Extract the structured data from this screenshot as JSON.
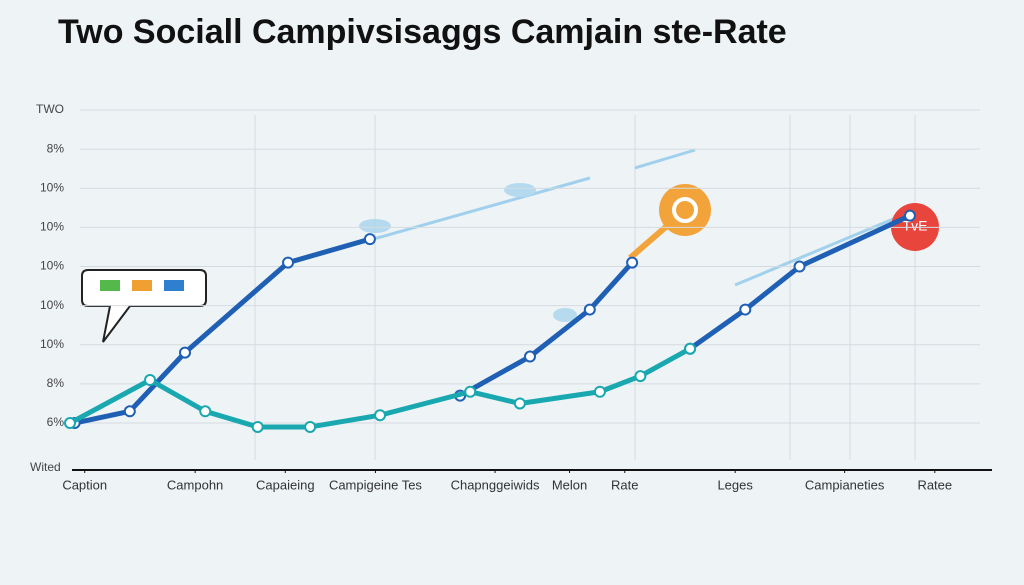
{
  "chart_data": {
    "type": "line",
    "title": "Two Sociall Campivsisaggs Camjain ste-Rate",
    "x_label": "Wited",
    "annotation": "TvE",
    "xlim": [
      0,
      100
    ],
    "xticks": [
      {
        "value": 1.6,
        "label": "Caption"
      },
      {
        "value": 13.6,
        "label": "Campohn"
      },
      {
        "value": 23.4,
        "label": "Capaieing"
      },
      {
        "value": 33.2,
        "label": "Campigeine Tes"
      },
      {
        "value": 46.2,
        "label": "Chapnggeiwids"
      },
      {
        "value": 54.3,
        "label": "Melon"
      },
      {
        "value": 60.3,
        "label": "Rate"
      },
      {
        "value": 72.3,
        "label": "Leges"
      },
      {
        "value": 84.2,
        "label": "Campianeties"
      },
      {
        "value": 94,
        "label": "Ratee"
      }
    ],
    "ylim": [
      -1.2,
      8
    ],
    "yticks": [
      {
        "value": 0,
        "label": "6%"
      },
      {
        "value": 1,
        "label": "8%"
      },
      {
        "value": 2,
        "label": "10%"
      },
      {
        "value": 3,
        "label": "10%"
      },
      {
        "value": 4,
        "label": "10%"
      },
      {
        "value": 5,
        "label": "10%"
      },
      {
        "value": 6,
        "label": "10%"
      },
      {
        "value": 7,
        "label": "8%"
      },
      {
        "value": 8,
        "label": "TWO"
      }
    ],
    "grid": true,
    "series": [
      {
        "color": "#1f5fb4",
        "x": [
          0.5,
          6.5,
          12.5,
          23.7,
          32.6,
          null,
          42.4,
          50.0,
          56.5,
          61.1,
          null,
          67.4,
          73.4,
          79.3,
          91.3
        ],
        "values": [
          0.0,
          0.3,
          1.8,
          4.1,
          4.7,
          null,
          0.7,
          1.7,
          2.9,
          4.1,
          null,
          1.9,
          2.9,
          4.0,
          5.3
        ]
      },
      {
        "color": "#1aa8b0",
        "x": [
          0,
          8.7,
          14.7,
          20.4,
          26.1,
          33.7,
          43.5,
          48.9,
          57.6,
          62.0,
          67.4
        ],
        "values": [
          0.0,
          1.1,
          0.3,
          -0.1,
          -0.1,
          0.2,
          0.8,
          0.5,
          0.8,
          1.2,
          1.9
        ]
      }
    ]
  }
}
